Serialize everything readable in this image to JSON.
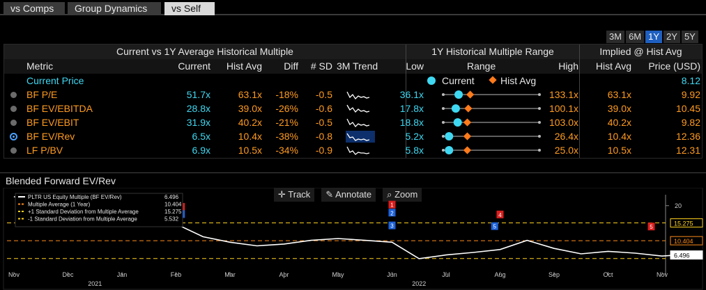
{
  "tabs": [
    {
      "label": "vs Comps",
      "active": false
    },
    {
      "label": "Group Dynamics",
      "active": false
    },
    {
      "label": "vs Self",
      "active": true
    }
  ],
  "periods": [
    {
      "label": "3M",
      "active": false
    },
    {
      "label": "6M",
      "active": false
    },
    {
      "label": "1Y",
      "active": true
    },
    {
      "label": "2Y",
      "active": false
    },
    {
      "label": "5Y",
      "active": false
    }
  ],
  "table": {
    "groups": {
      "current_vs_avg": "Current vs 1Y Average Historical Multiple",
      "range": "1Y Historical Multiple Range",
      "implied": "Implied @ Hist Avg"
    },
    "headers": {
      "metric": "Metric",
      "current": "Current",
      "hist_avg": "Hist Avg",
      "diff": "Diff",
      "sd": "# SD",
      "trend": "3M Trend",
      "low": "Low",
      "range": "Range",
      "high": "High",
      "imp_hist_avg": "Hist Avg",
      "price": "Price (USD)"
    },
    "current_price": {
      "label": "Current Price",
      "value": "8.12"
    },
    "range_legend": {
      "current": "Current",
      "hist_avg": "Hist Avg"
    },
    "rows": [
      {
        "metric": "BF P/E",
        "current": "51.7x",
        "hist_avg": "63.1x",
        "diff": "-18%",
        "sd": "-0.5",
        "low": "36.1x",
        "high": "133.1x",
        "imp_hist_avg": "63.1x",
        "price": "9.92",
        "cur_pos": 0.16,
        "avg_pos": 0.28,
        "selected": false
      },
      {
        "metric": "BF EV/EBITDA",
        "current": "28.8x",
        "hist_avg": "39.0x",
        "diff": "-26%",
        "sd": "-0.6",
        "low": "17.8x",
        "high": "100.1x",
        "imp_hist_avg": "39.0x",
        "price": "10.45",
        "cur_pos": 0.13,
        "avg_pos": 0.26,
        "selected": false
      },
      {
        "metric": "BF EV/EBIT",
        "current": "31.9x",
        "hist_avg": "40.2x",
        "diff": "-21%",
        "sd": "-0.5",
        "low": "18.8x",
        "high": "103.0x",
        "imp_hist_avg": "40.2x",
        "price": "9.82",
        "cur_pos": 0.15,
        "avg_pos": 0.25,
        "selected": false
      },
      {
        "metric": "BF EV/Rev",
        "current": "6.5x",
        "hist_avg": "10.4x",
        "diff": "-38%",
        "sd": "-0.8",
        "low": "5.2x",
        "high": "26.4x",
        "imp_hist_avg": "10.4x",
        "price": "12.36",
        "cur_pos": 0.06,
        "avg_pos": 0.25,
        "selected": true
      },
      {
        "metric": "LF P/BV",
        "current": "6.9x",
        "hist_avg": "10.5x",
        "diff": "-34%",
        "sd": "-0.9",
        "low": "5.8x",
        "high": "25.0x",
        "imp_hist_avg": "10.5x",
        "price": "12.31",
        "cur_pos": 0.06,
        "avg_pos": 0.25,
        "selected": false
      }
    ]
  },
  "chart_panel": {
    "title": "Blended Forward EV/Rev",
    "tools": [
      "Track",
      "Annotate",
      "Zoom"
    ],
    "legend": [
      {
        "label": "PLTR US Equity Multiple (BF EV/Rev)",
        "value": "6.496"
      },
      {
        "label": "Multiple Average (1 Year)",
        "value": "10.404"
      },
      {
        "label": "+1 Standard Deviation from Multiple Average",
        "value": "15.275"
      },
      {
        "label": "-1 Standard Deviation from Multiple Average",
        "value": "5.532"
      }
    ],
    "event_markers": [
      "1",
      "1",
      "1",
      "2",
      "3",
      "4",
      "5",
      "5"
    ]
  },
  "chart_data": {
    "type": "line",
    "title": "Blended Forward EV/Rev",
    "x_ticks": [
      "Nov",
      "Dec",
      "Jan",
      "Feb",
      "Mar",
      "Apr",
      "May",
      "Jun",
      "Jul",
      "Aug",
      "Sep",
      "Oct",
      "Nov"
    ],
    "year_labels": [
      "2021",
      "2022"
    ],
    "y_tick_labels": [
      "20"
    ],
    "ylim": [
      3,
      23
    ],
    "series": [
      {
        "name": "PLTR US Equity Multiple (BF EV/Rev)",
        "color": "#ffffff",
        "x": [
          0,
          0.5,
          1,
          1.5,
          2,
          2.5,
          3,
          3.5,
          4,
          4.5,
          5,
          5.5,
          6,
          6.5,
          7,
          7.5,
          8,
          8.5,
          9,
          9.5,
          10,
          10.5,
          11,
          11.5,
          12,
          12.3
        ],
        "values": [
          22.5,
          19.5,
          18.0,
          17.8,
          18.5,
          16.5,
          15.0,
          11.5,
          10.0,
          9.0,
          9.5,
          10.5,
          11.0,
          10.5,
          10.0,
          5.5,
          6.5,
          7.2,
          8.0,
          10.5,
          8.3,
          6.8,
          7.5,
          7.0,
          6.2,
          6.5
        ]
      },
      {
        "name": "Multiple Average (1 Year)",
        "color": "#ff8c1a",
        "constant": 10.404
      },
      {
        "name": "+1 Standard Deviation from Multiple Average",
        "color": "#ffd21f",
        "constant": 15.275
      },
      {
        "name": "-1 Standard Deviation from Multiple Average",
        "color": "#ffd21f",
        "constant": 5.532
      }
    ],
    "right_labels": [
      {
        "text": "15.275",
        "color": "#ffd21f"
      },
      {
        "text": "10.404",
        "color": "#ff8c1a"
      },
      {
        "text": "6.496",
        "color": "#ffffff"
      }
    ],
    "grid": false,
    "legend_position": "top-left"
  }
}
